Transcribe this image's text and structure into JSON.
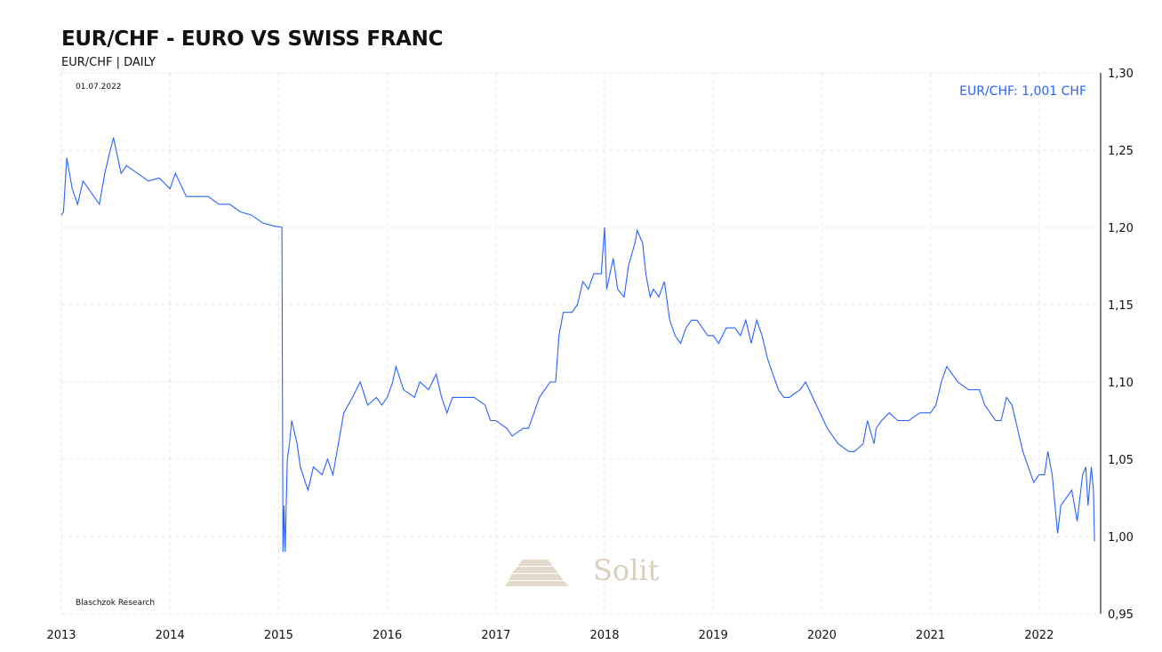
{
  "header": {
    "title": "EUR/CHF - EURO VS SWISS FRANC",
    "subtitle": "EUR/CHF | DAILY"
  },
  "date_label": "01.07.2022",
  "source_label": "Blaschzok Research",
  "watermark": "Solit",
  "colors": {
    "line": "#2962ff",
    "grid": "#e6e6e6",
    "watermark": "#d9cfbf"
  },
  "chart_data": {
    "type": "line",
    "title": "EUR/CHF - EURO VS SWISS FRANC",
    "annotation": "EUR/CHF: 1,001 CHF",
    "xlabel": "",
    "ylabel": "",
    "xlim": [
      2013,
      2022.58
    ],
    "ylim": [
      0.95,
      1.3
    ],
    "x_ticks": [
      2013,
      2014,
      2015,
      2016,
      2017,
      2018,
      2019,
      2020,
      2021,
      2022
    ],
    "x_tick_labels": [
      "2013",
      "2014",
      "2015",
      "2016",
      "2017",
      "2018",
      "2019",
      "2020",
      "2021",
      "2022"
    ],
    "y_ticks": [
      0.95,
      1.0,
      1.05,
      1.1,
      1.15,
      1.2,
      1.25,
      1.3
    ],
    "y_tick_labels": [
      "0,95",
      "1,00",
      "1,05",
      "1,10",
      "1,15",
      "1,20",
      "1,25",
      "1,30"
    ],
    "grid": true,
    "series": [
      {
        "name": "EUR/CHF",
        "x": [
          2013.0,
          2013.02,
          2013.05,
          2013.1,
          2013.15,
          2013.2,
          2013.3,
          2013.35,
          2013.4,
          2013.45,
          2013.48,
          2013.55,
          2013.6,
          2013.7,
          2013.8,
          2013.9,
          2014.0,
          2014.05,
          2014.15,
          2014.25,
          2014.35,
          2014.45,
          2014.55,
          2014.65,
          2014.75,
          2014.85,
          2014.95,
          2015.03,
          2015.04,
          2015.05,
          2015.06,
          2015.08,
          2015.1,
          2015.12,
          2015.17,
          2015.2,
          2015.27,
          2015.32,
          2015.4,
          2015.45,
          2015.5,
          2015.55,
          2015.6,
          2015.68,
          2015.75,
          2015.82,
          2015.9,
          2015.95,
          2016.0,
          2016.05,
          2016.08,
          2016.15,
          2016.25,
          2016.3,
          2016.38,
          2016.45,
          2016.5,
          2016.55,
          2016.6,
          2016.7,
          2016.8,
          2016.9,
          2016.95,
          2017.0,
          2017.1,
          2017.15,
          2017.25,
          2017.3,
          2017.35,
          2017.4,
          2017.45,
          2017.5,
          2017.55,
          2017.58,
          2017.62,
          2017.7,
          2017.75,
          2017.8,
          2017.85,
          2017.9,
          2017.97,
          2018.0,
          2018.02,
          2018.08,
          2018.12,
          2018.18,
          2018.22,
          2018.28,
          2018.3,
          2018.35,
          2018.38,
          2018.42,
          2018.45,
          2018.5,
          2018.55,
          2018.6,
          2018.65,
          2018.7,
          2018.75,
          2018.8,
          2018.85,
          2018.95,
          2019.0,
          2019.05,
          2019.12,
          2019.2,
          2019.25,
          2019.3,
          2019.35,
          2019.4,
          2019.45,
          2019.5,
          2019.6,
          2019.65,
          2019.7,
          2019.8,
          2019.85,
          2019.95,
          2020.05,
          2020.15,
          2020.25,
          2020.3,
          2020.38,
          2020.42,
          2020.48,
          2020.5,
          2020.55,
          2020.62,
          2020.7,
          2020.8,
          2020.9,
          2021.0,
          2021.05,
          2021.1,
          2021.15,
          2021.25,
          2021.35,
          2021.45,
          2021.5,
          2021.55,
          2021.6,
          2021.65,
          2021.7,
          2021.75,
          2021.8,
          2021.85,
          2021.9,
          2021.95,
          2022.0,
          2022.05,
          2022.08,
          2022.12,
          2022.17,
          2022.2,
          2022.25,
          2022.3,
          2022.35,
          2022.4,
          2022.43,
          2022.45,
          2022.48,
          2022.5,
          2022.51
        ],
        "y": [
          1.208,
          1.21,
          1.245,
          1.225,
          1.215,
          1.23,
          1.22,
          1.215,
          1.235,
          1.25,
          1.258,
          1.235,
          1.24,
          1.235,
          1.23,
          1.232,
          1.225,
          1.235,
          1.22,
          1.22,
          1.22,
          1.215,
          1.215,
          1.21,
          1.208,
          1.203,
          1.201,
          1.2,
          0.99,
          1.02,
          0.99,
          1.05,
          1.06,
          1.075,
          1.06,
          1.045,
          1.03,
          1.045,
          1.04,
          1.05,
          1.04,
          1.06,
          1.08,
          1.09,
          1.1,
          1.085,
          1.09,
          1.085,
          1.09,
          1.1,
          1.11,
          1.095,
          1.09,
          1.1,
          1.095,
          1.105,
          1.09,
          1.08,
          1.09,
          1.09,
          1.09,
          1.085,
          1.075,
          1.075,
          1.07,
          1.065,
          1.07,
          1.07,
          1.08,
          1.09,
          1.095,
          1.1,
          1.1,
          1.13,
          1.145,
          1.145,
          1.15,
          1.165,
          1.16,
          1.17,
          1.17,
          1.2,
          1.16,
          1.18,
          1.16,
          1.155,
          1.175,
          1.19,
          1.198,
          1.19,
          1.17,
          1.155,
          1.16,
          1.155,
          1.165,
          1.14,
          1.13,
          1.125,
          1.135,
          1.14,
          1.14,
          1.13,
          1.13,
          1.125,
          1.135,
          1.135,
          1.13,
          1.14,
          1.125,
          1.14,
          1.13,
          1.115,
          1.095,
          1.09,
          1.09,
          1.095,
          1.1,
          1.085,
          1.07,
          1.06,
          1.055,
          1.055,
          1.06,
          1.075,
          1.06,
          1.07,
          1.075,
          1.08,
          1.075,
          1.075,
          1.08,
          1.08,
          1.085,
          1.1,
          1.11,
          1.1,
          1.095,
          1.095,
          1.085,
          1.08,
          1.075,
          1.075,
          1.09,
          1.085,
          1.07,
          1.055,
          1.045,
          1.035,
          1.04,
          1.04,
          1.055,
          1.04,
          1.002,
          1.02,
          1.025,
          1.03,
          1.01,
          1.04,
          1.045,
          1.02,
          1.045,
          1.03,
          0.997
        ]
      }
    ]
  }
}
